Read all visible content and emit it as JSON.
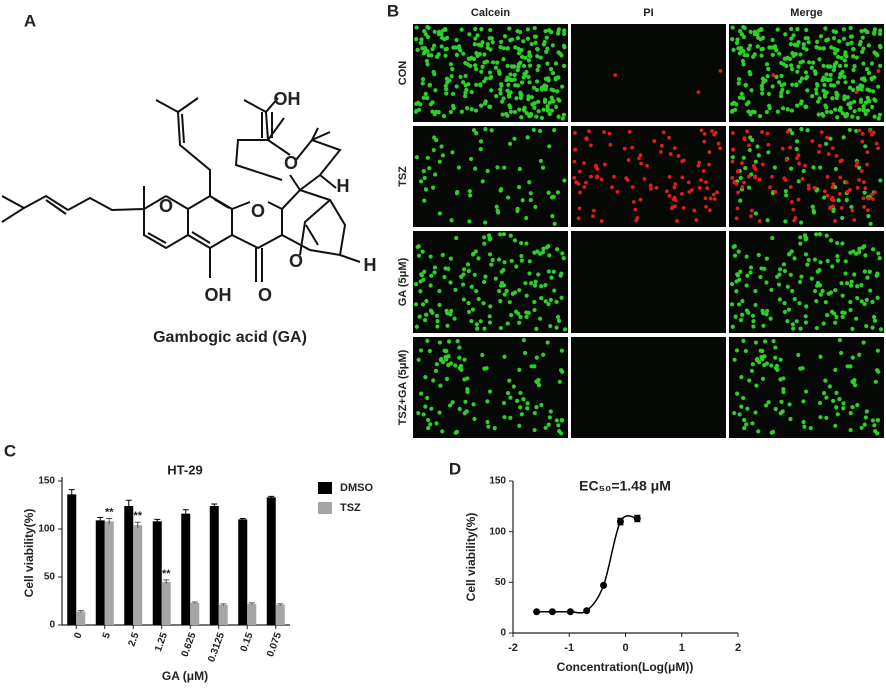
{
  "panel_labels": [
    "A",
    "B",
    "C",
    "D"
  ],
  "structure": {
    "atoms": [
      "OH",
      "O",
      "H",
      "O",
      "O",
      "O",
      "H",
      "OH",
      "O"
    ],
    "caption": "Gambogic acid (GA)"
  },
  "microscopy": {
    "columns": [
      "Calcein",
      "PI",
      "Merge"
    ],
    "rows": [
      "CON",
      "TSZ",
      "GA (5μM)",
      "TSZ+GA (5μM)"
    ]
  },
  "chart_data": [
    {
      "type": "bar",
      "title": "HT-29",
      "x_label": "GA (μM)",
      "y_label": "Cell viability(%)",
      "categories": [
        "0",
        "5",
        "2.5",
        "1.25",
        "0.625",
        "0.3125",
        "0.15",
        "0.075"
      ],
      "series": [
        {
          "name": "DMSO",
          "color": "#000000",
          "values": [
            136,
            109,
            124,
            108,
            116,
            124,
            110,
            133
          ],
          "errors": [
            5,
            3,
            6,
            2,
            4,
            2,
            1,
            1
          ]
        },
        {
          "name": "TSZ",
          "color": "#a6a6a6",
          "values": [
            14,
            108,
            104,
            45,
            23,
            21,
            22,
            21
          ],
          "errors": [
            1,
            3,
            3,
            2,
            1,
            1,
            1,
            1
          ]
        }
      ],
      "annotations": [
        {
          "text": "**",
          "category": "5",
          "series": "TSZ"
        },
        {
          "text": "**",
          "category": "2.5",
          "series": "TSZ"
        },
        {
          "text": "**",
          "category": "1.25",
          "series": "TSZ"
        }
      ],
      "ylim": [
        0,
        150
      ],
      "yticks": [
        0,
        50,
        100,
        150
      ],
      "legend": "right"
    },
    {
      "type": "line",
      "title": "EC₅₀=1.48 μM",
      "x_label": "Concentration(Log(μM))",
      "y_label": "Cell viability(%)",
      "x": [
        -1.58,
        -1.3,
        -0.98,
        -0.69,
        -0.39,
        -0.09,
        0.21
      ],
      "values": [
        21,
        21,
        21,
        22,
        47,
        110,
        113
      ],
      "errors": [
        0,
        0,
        0,
        0,
        0,
        3,
        3
      ],
      "color": "#000000",
      "xlim": [
        -2,
        2
      ],
      "xticks": [
        -2,
        -1,
        0,
        1,
        2
      ],
      "ylim": [
        0,
        150
      ],
      "yticks": [
        0,
        50,
        100,
        150
      ]
    }
  ]
}
